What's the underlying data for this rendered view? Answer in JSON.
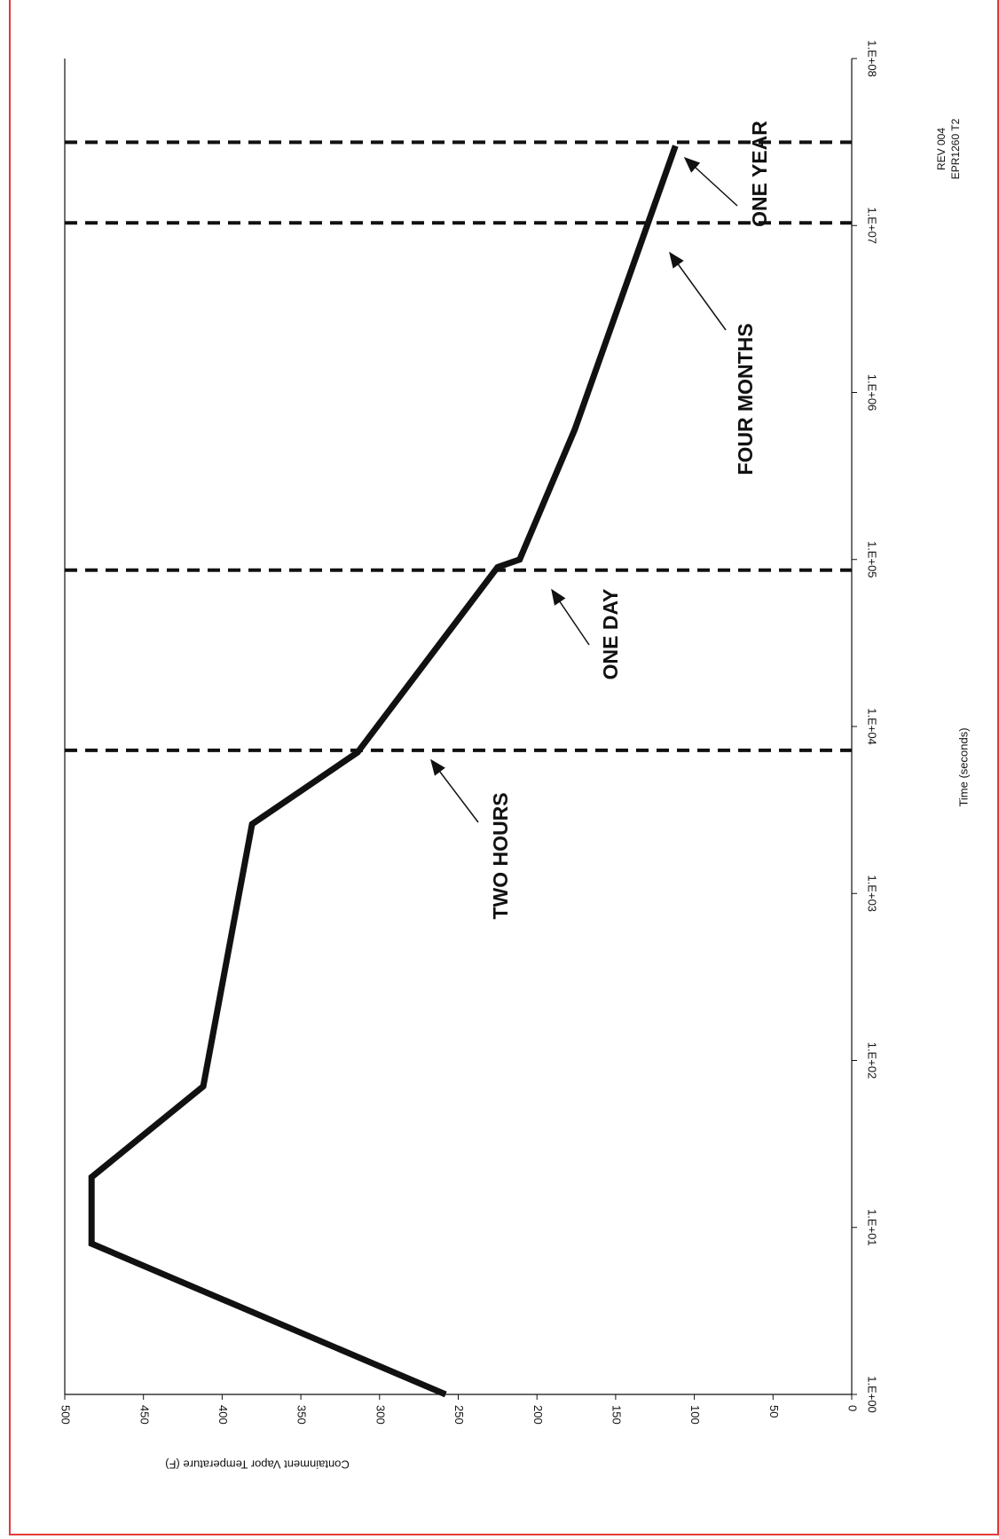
{
  "chart_data": {
    "type": "line",
    "orientation": "rotated-90",
    "xlabel": "Time (seconds)",
    "ylabel": "Containment Vapor Temperature (F)",
    "x_scale": "log",
    "xlim": [
      1,
      100000000
    ],
    "ylim": [
      0,
      500
    ],
    "x_ticks": [
      {
        "value": 1,
        "label": "1.E+00"
      },
      {
        "value": 10,
        "label": "1.E+01"
      },
      {
        "value": 100,
        "label": "1.E+02"
      },
      {
        "value": 1000,
        "label": "1.E+03"
      },
      {
        "value": 10000,
        "label": "1.E+04"
      },
      {
        "value": 100000,
        "label": "1.E+05"
      },
      {
        "value": 1000000,
        "label": "1.E+06"
      },
      {
        "value": 10000000,
        "label": "1.E+07"
      },
      {
        "value": 100000000,
        "label": "1.E+08"
      }
    ],
    "y_ticks": [
      0,
      50,
      100,
      150,
      200,
      250,
      300,
      350,
      400,
      450,
      500
    ],
    "grid": false,
    "series": [
      {
        "points": [
          [
            1,
            258
          ],
          [
            8,
            483
          ],
          [
            20,
            483
          ],
          [
            70,
            412
          ],
          [
            2600,
            381
          ],
          [
            7000,
            314
          ],
          [
            90000,
            225
          ],
          [
            100000,
            211
          ],
          [
            600000,
            176
          ],
          [
            30000000,
            112
          ]
        ]
      }
    ],
    "markers": [
      {
        "x": 7200,
        "label": "TWO HOURS"
      },
      {
        "x": 86400,
        "label": "ONE DAY"
      },
      {
        "x": 10368000,
        "label": "FOUR MONTHS"
      },
      {
        "x": 31536000,
        "label": "ONE YEAR"
      }
    ],
    "revision": {
      "line1": "REV 004",
      "line2": "EPR1260 T2"
    }
  }
}
